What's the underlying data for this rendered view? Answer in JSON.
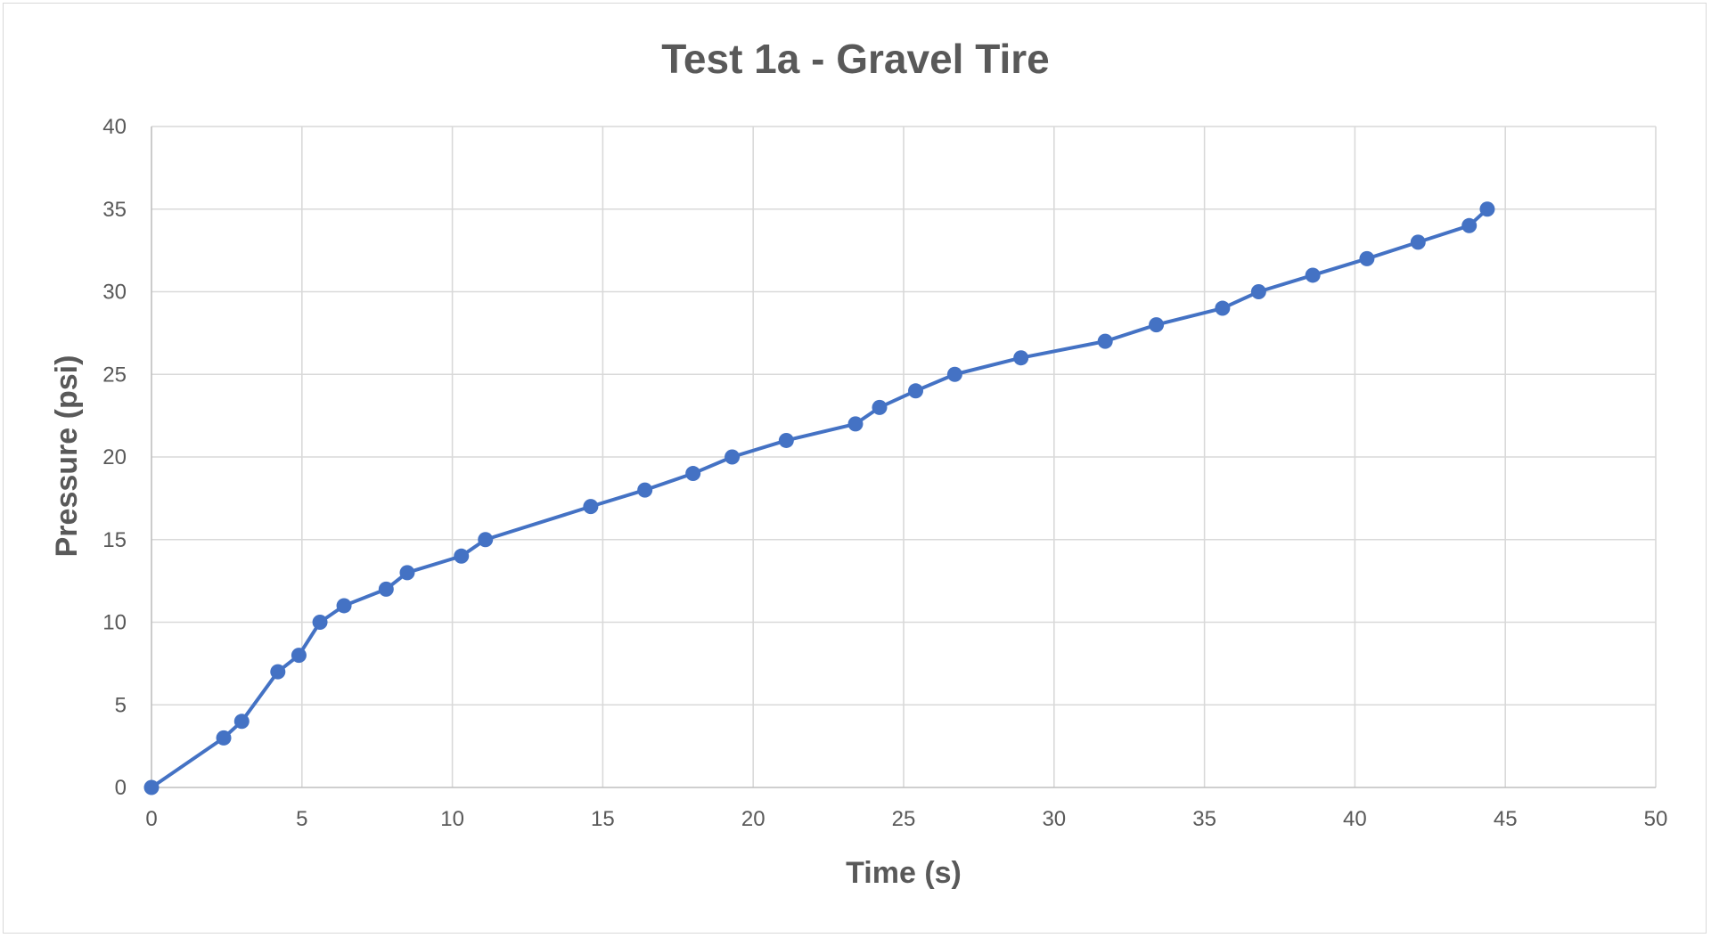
{
  "chart_data": {
    "type": "line",
    "title": "Test 1a - Gravel Tire",
    "xlabel": "Time (s)",
    "ylabel": "Pressure (psi)",
    "xlim": [
      0,
      50
    ],
    "ylim": [
      0,
      40
    ],
    "xticks": [
      0,
      5,
      10,
      15,
      20,
      25,
      30,
      35,
      40,
      45,
      50
    ],
    "yticks": [
      0,
      5,
      10,
      15,
      20,
      25,
      30,
      35,
      40
    ],
    "grid": true,
    "legend": "none",
    "color": "#4472C4",
    "series": [
      {
        "x": [
          0,
          2.4,
          3.0,
          4.2,
          4.9,
          5.6,
          6.4,
          7.8,
          8.5,
          10.3,
          11.1,
          14.6,
          16.4,
          18.0,
          19.3,
          21.1,
          23.4,
          24.2,
          25.4,
          26.7,
          28.9,
          31.7,
          33.4,
          35.6,
          36.8,
          38.6,
          40.4,
          42.1,
          43.8,
          44.4
        ],
        "y": [
          0,
          3,
          4,
          7,
          8,
          10,
          11,
          12,
          13,
          14,
          15,
          17,
          18,
          19,
          20,
          21,
          22,
          23,
          24,
          25,
          26,
          27,
          28,
          29,
          30,
          31,
          32,
          33,
          34,
          35
        ]
      }
    ]
  }
}
